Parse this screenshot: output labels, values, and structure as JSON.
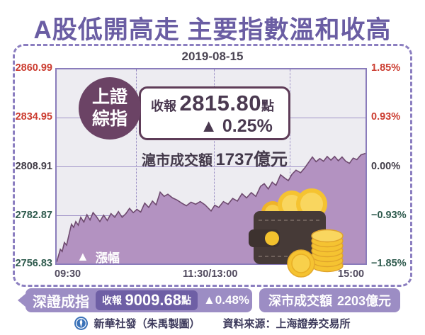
{
  "headline": "A股低開高走  主要指數溫和收高",
  "date": "2019-08-15",
  "index_badge": {
    "line1": "上證",
    "line2": "綜指"
  },
  "close_info": {
    "label": "收報",
    "value": "2815.80",
    "unit": "點",
    "arrow": "▲",
    "change": "0.25%"
  },
  "sh_turnover": {
    "label": "滬市成交額",
    "value": "1737億元"
  },
  "legend": {
    "arrow": "▲",
    "label": "漲幅"
  },
  "chart_data": {
    "type": "area",
    "title": "上證綜指 2019-08-15 分時走勢",
    "date": "2019-08-15",
    "close": 2815.8,
    "prev_close": 2808.91,
    "change_pct": 0.25,
    "turnover": "1737億元",
    "grid": true,
    "ylim_pct": [
      -1.85,
      1.85
    ],
    "y_axis_left": {
      "labels": [
        "2860.99",
        "2834.95",
        "2808.91",
        "2782.87",
        "2756.83"
      ]
    },
    "y_axis_right": {
      "labels": [
        "1.85%",
        "0.93%",
        "0.00%",
        "−0.93%",
        "−1.85%"
      ]
    },
    "x_axis": {
      "labels": [
        "09:30",
        "11:30/13:00",
        "15:00"
      ]
    },
    "points": [
      [
        0.0,
        -1.82
      ],
      [
        0.006,
        -1.7
      ],
      [
        0.012,
        -1.58
      ],
      [
        0.018,
        -1.62
      ],
      [
        0.025,
        -1.45
      ],
      [
        0.032,
        -1.5
      ],
      [
        0.04,
        -1.3
      ],
      [
        0.048,
        -1.1
      ],
      [
        0.055,
        -1.16
      ],
      [
        0.062,
        -1.05
      ],
      [
        0.07,
        -1.12
      ],
      [
        0.078,
        -0.97
      ],
      [
        0.088,
        -1.06
      ],
      [
        0.098,
        -0.92
      ],
      [
        0.108,
        -1.02
      ],
      [
        0.118,
        -0.88
      ],
      [
        0.128,
        -0.95
      ],
      [
        0.14,
        -1.05
      ],
      [
        0.152,
        -0.93
      ],
      [
        0.164,
        -1.03
      ],
      [
        0.176,
        -0.9
      ],
      [
        0.188,
        -0.97
      ],
      [
        0.2,
        -0.86
      ],
      [
        0.212,
        -0.97
      ],
      [
        0.224,
        -0.9
      ],
      [
        0.236,
        -0.8
      ],
      [
        0.248,
        -0.88
      ],
      [
        0.26,
        -0.82
      ],
      [
        0.272,
        -0.87
      ],
      [
        0.285,
        -0.7
      ],
      [
        0.298,
        -0.78
      ],
      [
        0.31,
        -0.66
      ],
      [
        0.322,
        -0.73
      ],
      [
        0.335,
        -0.49
      ],
      [
        0.348,
        -0.57
      ],
      [
        0.36,
        -0.53
      ],
      [
        0.375,
        -0.6
      ],
      [
        0.39,
        -0.64
      ],
      [
        0.405,
        -0.7
      ],
      [
        0.42,
        -0.75
      ],
      [
        0.435,
        -0.68
      ],
      [
        0.45,
        -0.72
      ],
      [
        0.465,
        -0.67
      ],
      [
        0.48,
        -0.73
      ],
      [
        0.5,
        -0.85
      ],
      [
        0.512,
        -0.74
      ],
      [
        0.525,
        -0.78
      ],
      [
        0.54,
        -0.67
      ],
      [
        0.555,
        -0.72
      ],
      [
        0.57,
        -0.61
      ],
      [
        0.585,
        -0.66
      ],
      [
        0.6,
        -0.52
      ],
      [
        0.615,
        -0.6
      ],
      [
        0.63,
        -0.5
      ],
      [
        0.645,
        -0.57
      ],
      [
        0.66,
        -0.38
      ],
      [
        0.672,
        -0.33
      ],
      [
        0.685,
        -0.43
      ],
      [
        0.698,
        -0.3
      ],
      [
        0.71,
        -0.36
      ],
      [
        0.725,
        -0.16
      ],
      [
        0.738,
        -0.22
      ],
      [
        0.75,
        -0.27
      ],
      [
        0.762,
        -0.15
      ],
      [
        0.775,
        -0.07
      ],
      [
        0.79,
        -0.12
      ],
      [
        0.803,
        -0.03
      ],
      [
        0.815,
        0.07
      ],
      [
        0.828,
        0.18
      ],
      [
        0.84,
        0.09
      ],
      [
        0.852,
        0.15
      ],
      [
        0.864,
        0.1
      ],
      [
        0.876,
        0.19
      ],
      [
        0.888,
        0.12
      ],
      [
        0.9,
        0.19
      ],
      [
        0.912,
        0.11
      ],
      [
        0.924,
        0.18
      ],
      [
        0.936,
        0.1
      ],
      [
        0.948,
        0.06
      ],
      [
        0.96,
        0.16
      ],
      [
        0.972,
        0.13
      ],
      [
        0.985,
        0.22
      ],
      [
        1.0,
        0.25
      ]
    ]
  },
  "bottom_bar": {
    "szse": {
      "name": "深證成指",
      "close_label": "收報",
      "close_value": "9009.68",
      "close_unit": "點",
      "change": "▲0.48%"
    },
    "sz_turnover": {
      "label": "深市成交額",
      "value": "2203億元"
    }
  },
  "footer": {
    "credit": "新華社發（朱禹製圖）",
    "source": "資料來源：上海證券交易所"
  },
  "colors": {
    "headline": "#6a5da3",
    "card_border": "#8b7ec0",
    "plot_bg": "#edecf1",
    "area_fill": "#b392c1",
    "area_line": "#6e4a6f",
    "badge": "#6b4365",
    "axis_up": "#cb3c30",
    "axis_zero": "#413c47",
    "axis_down": "#2f5b4e",
    "bar_light": "#9c8dc4",
    "bar_dark": "#6e5fa5",
    "coin": "#f5c331",
    "wallet": "#463a37"
  }
}
